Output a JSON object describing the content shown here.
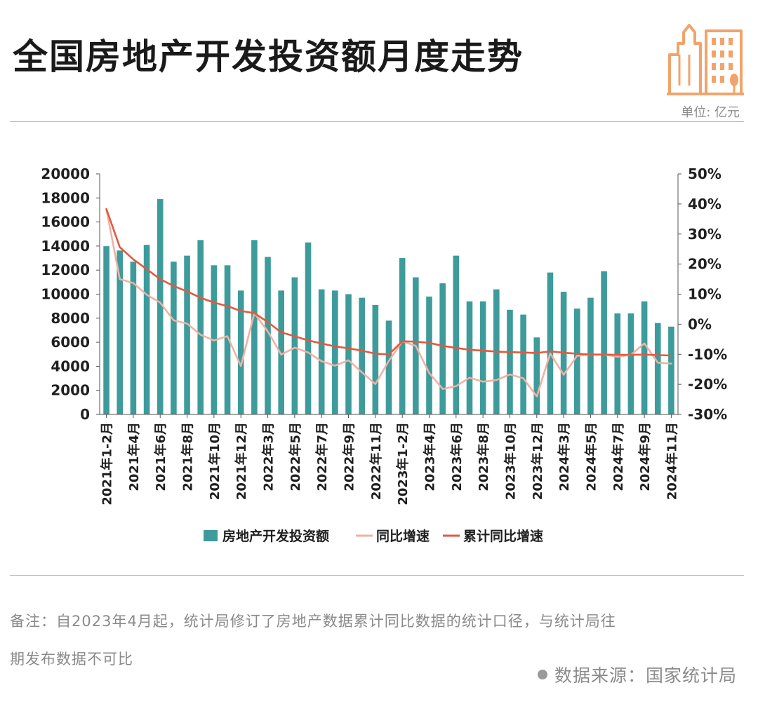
{
  "page": {
    "title": "全国房地产开发投资额月度走势",
    "unit": "单位: 亿元",
    "note_line1": "备注：自2023年4月起，统计局修订了房地产数据累计同比数据的统计口径，与统计局往",
    "note_line2": "期发布数据不可比",
    "source": "数据来源：国家统计局",
    "logo_icon": "city-buildings-icon"
  },
  "colors": {
    "bar": "#3d9b9b",
    "yoy_line": "#efb2a3",
    "cum_line": "#e2593f",
    "logo": "#f0a46c"
  },
  "chart_data": {
    "type": "bar",
    "categories": [
      "2021年1-2月",
      "2021年3月",
      "2021年4月",
      "2021年5月",
      "2021年6月",
      "2021年7月",
      "2021年8月",
      "2021年9月",
      "2021年10月",
      "2021年11月",
      "2021年12月",
      "2022年1-2月",
      "2022年3月",
      "2022年4月",
      "2022年5月",
      "2022年6月",
      "2022年7月",
      "2022年8月",
      "2022年9月",
      "2022年10月",
      "2022年11月",
      "2022年12月",
      "2023年1-2月",
      "2023年3月",
      "2023年4月",
      "2023年5月",
      "2023年6月",
      "2023年7月",
      "2023年8月",
      "2023年9月",
      "2023年10月",
      "2023年11月",
      "2023年12月",
      "2024年1-2月",
      "2024年3月",
      "2024年4月",
      "2024年5月",
      "2024年6月",
      "2024年7月",
      "2024年8月",
      "2024年9月",
      "2024年10月",
      "2024年11月"
    ],
    "tick_labels": [
      "2021年1-2月",
      "2021年4月",
      "2021年6月",
      "2021年8月",
      "2021年10月",
      "2021年12月",
      "2022年3月",
      "2022年5月",
      "2022年7月",
      "2022年9月",
      "2022年11月",
      "2023年1-2月",
      "2023年4月",
      "2023年6月",
      "2023年8月",
      "2023年10月",
      "2023年12月",
      "2024年3月",
      "2024年5月",
      "2024年7月",
      "2024年9月",
      "2024年11月"
    ],
    "y_left": {
      "min": 0,
      "max": 20000,
      "ticks": [
        "0",
        "2000",
        "4000",
        "6000",
        "8000",
        "10000",
        "12000",
        "14000",
        "16000",
        "18000",
        "20000"
      ]
    },
    "y_right": {
      "min": -30,
      "max": 50,
      "ticks": [
        "-30%",
        "-20%",
        "-10%",
        "0%",
        "10%",
        "20%",
        "30%",
        "40%",
        "50%"
      ]
    },
    "series": [
      {
        "name": "房地产开发投资额",
        "type": "bar",
        "axis": "left",
        "values": [
          13986,
          13630,
          12700,
          14100,
          17900,
          12700,
          13200,
          14500,
          12400,
          12400,
          10300,
          14500,
          13100,
          10300,
          11400,
          14300,
          10400,
          10300,
          10000,
          9700,
          9100,
          7800,
          13000,
          11400,
          9800,
          10900,
          13200,
          9400,
          9400,
          10400,
          8700,
          8300,
          6400,
          11800,
          10200,
          8800,
          9700,
          11900,
          8400,
          8400,
          9400,
          7600,
          7300
        ]
      },
      {
        "name": "同比增速",
        "type": "line",
        "axis": "right",
        "values": [
          38.3,
          15,
          13.7,
          9.8,
          7.2,
          1.3,
          0.2,
          -3.5,
          -5.4,
          -4,
          -13.9,
          3.7,
          -2.4,
          -10.1,
          -7.8,
          -9.4,
          -12.3,
          -13.8,
          -12,
          -16,
          -19.9,
          -12.2,
          -5.7,
          -7.2,
          -16.2,
          -21.5,
          -20.6,
          -17.8,
          -19.1,
          -18.6,
          -16.7,
          -18,
          -24,
          -9.7,
          -16.8,
          -10.5,
          -10.1,
          -10.1,
          -10.8,
          -10.2,
          -6.4,
          -12.8,
          -13.1
        ]
      },
      {
        "name": "累计同比增速",
        "type": "line",
        "axis": "right",
        "values": [
          38.3,
          25.6,
          21.6,
          18.3,
          15,
          12.7,
          10.9,
          8.8,
          7.2,
          6,
          4.4,
          3.7,
          0.7,
          -2.7,
          -4,
          -5.4,
          -6.4,
          -7.4,
          -8,
          -8.8,
          -9.8,
          -10,
          -5.7,
          -5.8,
          -6.2,
          -7.2,
          -7.9,
          -8.5,
          -8.8,
          -9.1,
          -9.3,
          -9.4,
          -9.6,
          -9,
          -9.5,
          -9.8,
          -10.1,
          -10.1,
          -10.2,
          -10.2,
          -10.1,
          -10.3,
          -10.4
        ]
      }
    ],
    "legend": [
      "房地产开发投资额",
      "同比增速",
      "累计同比增速"
    ],
    "legend_position": "bottom",
    "grid": false,
    "title": "全国房地产开发投资额月度走势"
  }
}
